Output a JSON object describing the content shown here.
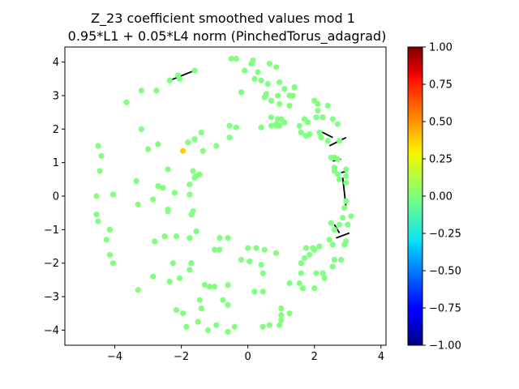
{
  "chart_data": {
    "type": "scatter",
    "title": "Z_23 coefficient smoothed values mod 1",
    "subtitle": "0.95*L1 + 0.05*L4 norm (PinchedTorus_adagrad)",
    "xlabel": "",
    "ylabel": "",
    "xlim": [
      -5.5,
      4.15
    ],
    "ylim": [
      -4.45,
      4.45
    ],
    "xticks": [
      -4,
      -2,
      0,
      2,
      4
    ],
    "yticks": [
      -4,
      -3,
      -2,
      -1,
      0,
      1,
      2,
      3,
      4
    ],
    "grid": false,
    "colorbar": {
      "colormap": "jet",
      "min": -1.0,
      "max": 1.0,
      "ticks": [
        "1.00",
        "0.75",
        "0.50",
        "0.25",
        "0.00",
        "−0.25",
        "−0.50",
        "−0.75",
        "−1.00"
      ],
      "tick_values": [
        1.0,
        0.75,
        0.5,
        0.25,
        0.0,
        -0.25,
        -0.5,
        -0.75,
        -1.0
      ]
    },
    "point_color_value": 0.0,
    "points": [
      [
        -0.5,
        4.1
      ],
      [
        -0.35,
        4.1
      ],
      [
        0.1,
        3.95
      ],
      [
        0.15,
        4.05
      ],
      [
        0.65,
        3.95
      ],
      [
        0.85,
        3.85
      ],
      [
        -0.1,
        3.75
      ],
      [
        0.3,
        3.7
      ],
      [
        0.2,
        3.5
      ],
      [
        0.4,
        3.45
      ],
      [
        0.6,
        3.35
      ],
      [
        0.95,
        3.4
      ],
      [
        1.1,
        3.2
      ],
      [
        1.4,
        3.25
      ],
      [
        -0.2,
        3.1
      ],
      [
        0.55,
        3.05
      ],
      [
        0.5,
        2.95
      ],
      [
        0.7,
        2.85
      ],
      [
        0.9,
        3.0
      ],
      [
        1.25,
        3.0
      ],
      [
        0.95,
        2.75
      ],
      [
        1.25,
        2.7
      ],
      [
        1.35,
        3.0
      ],
      [
        2.0,
        2.85
      ],
      [
        2.1,
        2.75
      ],
      [
        2.4,
        2.7
      ],
      [
        2.1,
        2.55
      ],
      [
        2.05,
        2.35
      ],
      [
        2.25,
        2.35
      ],
      [
        2.55,
        2.3
      ],
      [
        2.7,
        2.15
      ],
      [
        1.7,
        2.3
      ],
      [
        1.8,
        2.2
      ],
      [
        1.55,
        2.1
      ],
      [
        0.7,
        2.35
      ],
      [
        0.9,
        2.3
      ],
      [
        0.7,
        2.1
      ],
      [
        0.85,
        2.1
      ],
      [
        0.85,
        2.15
      ],
      [
        0.95,
        2.1
      ],
      [
        0.4,
        2.05
      ],
      [
        1.1,
        2.2
      ],
      [
        1.0,
        2.3
      ],
      [
        1.6,
        1.9
      ],
      [
        1.75,
        1.8
      ],
      [
        2.15,
        1.9
      ],
      [
        2.4,
        1.65
      ],
      [
        2.75,
        1.65
      ],
      [
        1.85,
        1.85
      ],
      [
        2.2,
        1.75
      ],
      [
        -0.55,
        2.1
      ],
      [
        -0.35,
        2.05
      ],
      [
        -0.55,
        1.75
      ],
      [
        -1.4,
        1.9
      ],
      [
        -1.6,
        1.7
      ],
      [
        -1.8,
        1.6
      ],
      [
        -1.35,
        1.35
      ],
      [
        -0.95,
        1.5
      ],
      [
        -3.65,
        2.8
      ],
      [
        -3.2,
        3.15
      ],
      [
        -2.75,
        3.15
      ],
      [
        -3.2,
        2.0
      ],
      [
        -3.0,
        1.4
      ],
      [
        -2.7,
        1.55
      ],
      [
        -4.5,
        1.5
      ],
      [
        -4.4,
        1.2
      ],
      [
        -4.45,
        0.75
      ],
      [
        -2.4,
        0.8
      ],
      [
        -1.65,
        0.75
      ],
      [
        -1.55,
        0.6
      ],
      [
        -1.45,
        0.65
      ],
      [
        -1.6,
        0.55
      ],
      [
        -3.35,
        0.45
      ],
      [
        -2.7,
        0.3
      ],
      [
        -2.55,
        0.25
      ],
      [
        -1.75,
        0.35
      ],
      [
        -2.2,
        0.1
      ],
      [
        -4.55,
        0.0
      ],
      [
        -4.05,
        0.05
      ],
      [
        -2.85,
        -0.1
      ],
      [
        -1.75,
        0.05
      ],
      [
        -3.3,
        -0.25
      ],
      [
        -2.4,
        -0.4
      ],
      [
        -2.4,
        -0.45
      ],
      [
        -1.65,
        -0.45
      ],
      [
        -1.7,
        -0.55
      ],
      [
        -4.55,
        -0.55
      ],
      [
        -4.5,
        -0.75
      ],
      [
        -4.15,
        -1.0
      ],
      [
        -4.25,
        -1.3
      ],
      [
        -2.8,
        -1.35
      ],
      [
        -2.5,
        -1.2
      ],
      [
        -2.15,
        -1.2
      ],
      [
        -1.75,
        -1.25
      ],
      [
        -1.55,
        -1.05
      ],
      [
        -0.85,
        -1.25
      ],
      [
        -0.6,
        -1.25
      ],
      [
        -4.15,
        -1.75
      ],
      [
        -4.05,
        -2.0
      ],
      [
        -2.25,
        -2.0
      ],
      [
        -1.7,
        -2.0
      ],
      [
        -1.0,
        -1.6
      ],
      [
        -0.85,
        -1.6
      ],
      [
        0.0,
        -1.55
      ],
      [
        0.25,
        -1.55
      ],
      [
        0.5,
        -1.6
      ],
      [
        0.85,
        -1.7
      ],
      [
        -0.2,
        -1.9
      ],
      [
        0.05,
        -1.95
      ],
      [
        0.4,
        -2.05
      ],
      [
        -1.75,
        -2.2
      ],
      [
        -2.85,
        -2.4
      ],
      [
        -2.35,
        -2.55
      ],
      [
        -2.05,
        -2.45
      ],
      [
        -1.3,
        -2.65
      ],
      [
        -1.15,
        -2.7
      ],
      [
        -1.0,
        -2.7
      ],
      [
        -0.6,
        -2.65
      ],
      [
        0.2,
        -2.85
      ],
      [
        0.45,
        -2.85
      ],
      [
        0.45,
        -2.3
      ],
      [
        -3.3,
        -2.8
      ],
      [
        -1.45,
        -3.1
      ],
      [
        -0.75,
        -3.1
      ],
      [
        -0.6,
        -3.25
      ],
      [
        1.25,
        -2.6
      ],
      [
        1.55,
        -2.6
      ],
      [
        1.6,
        -2.3
      ],
      [
        2.05,
        -2.3
      ],
      [
        2.25,
        -2.3
      ],
      [
        1.65,
        -2.75
      ],
      [
        2.3,
        -2.45
      ],
      [
        2.0,
        -2.75
      ],
      [
        1.7,
        -1.85
      ],
      [
        1.6,
        -2.0
      ],
      [
        1.85,
        -1.75
      ],
      [
        2.0,
        -1.6
      ],
      [
        1.95,
        -1.55
      ],
      [
        2.15,
        -1.5
      ],
      [
        1.75,
        -1.55
      ],
      [
        2.6,
        -1.9
      ],
      [
        2.8,
        -1.9
      ],
      [
        2.55,
        -2.1
      ],
      [
        2.55,
        -1.45
      ],
      [
        2.45,
        -1.3
      ],
      [
        2.9,
        -1.45
      ],
      [
        2.95,
        -1.35
      ],
      [
        2.6,
        -1.0
      ],
      [
        2.75,
        -0.85
      ],
      [
        3.0,
        -0.85
      ],
      [
        2.85,
        -0.65
      ],
      [
        2.5,
        -0.8
      ],
      [
        3.1,
        -0.6
      ],
      [
        2.9,
        -0.35
      ],
      [
        2.95,
        -0.15
      ],
      [
        2.95,
        0.4
      ],
      [
        2.95,
        0.6
      ],
      [
        2.95,
        0.8
      ],
      [
        2.7,
        0.65
      ],
      [
        2.75,
        0.5
      ],
      [
        2.6,
        0.75
      ],
      [
        2.6,
        0.85
      ],
      [
        2.5,
        1.15
      ],
      [
        2.6,
        1.15
      ],
      [
        2.7,
        1.1
      ],
      [
        -2.1,
        3.6
      ],
      [
        -1.6,
        3.75
      ],
      [
        -2.35,
        3.45
      ],
      [
        -2.05,
        3.5
      ],
      [
        -1.4,
        -3.35
      ],
      [
        -2.15,
        -3.4
      ],
      [
        -1.95,
        -3.5
      ],
      [
        -1.5,
        -3.75
      ],
      [
        -0.95,
        -3.85
      ],
      [
        -0.4,
        -3.9
      ],
      [
        -0.6,
        -4.05
      ],
      [
        -1.2,
        -4.0
      ],
      [
        -1.85,
        -3.9
      ],
      [
        0.45,
        -3.9
      ],
      [
        0.65,
        -3.85
      ],
      [
        0.95,
        -3.85
      ],
      [
        1.0,
        -3.7
      ],
      [
        1.25,
        -3.5
      ],
      [
        1.0,
        -3.55
      ],
      [
        1.0,
        -3.35
      ]
    ],
    "highlight_points": [
      {
        "x": -1.95,
        "y": 1.35,
        "value": 0.35
      }
    ],
    "segments": [
      [
        [
          -2.35,
          3.45
        ],
        [
          -1.6,
          3.75
        ]
      ],
      [
        [
          2.15,
          1.95
        ],
        [
          2.55,
          1.75
        ]
      ],
      [
        [
          2.45,
          1.5
        ],
        [
          2.95,
          1.75
        ]
      ],
      [
        [
          2.55,
          1.05
        ],
        [
          2.8,
          1.1
        ]
      ],
      [
        [
          2.8,
          0.7
        ],
        [
          3.0,
          0.75
        ]
      ],
      [
        [
          2.85,
          0.55
        ],
        [
          2.95,
          -0.35
        ]
      ],
      [
        [
          2.6,
          -0.85
        ],
        [
          2.75,
          -1.1
        ]
      ],
      [
        [
          2.65,
          -1.25
        ],
        [
          3.05,
          -1.1
        ]
      ]
    ]
  }
}
